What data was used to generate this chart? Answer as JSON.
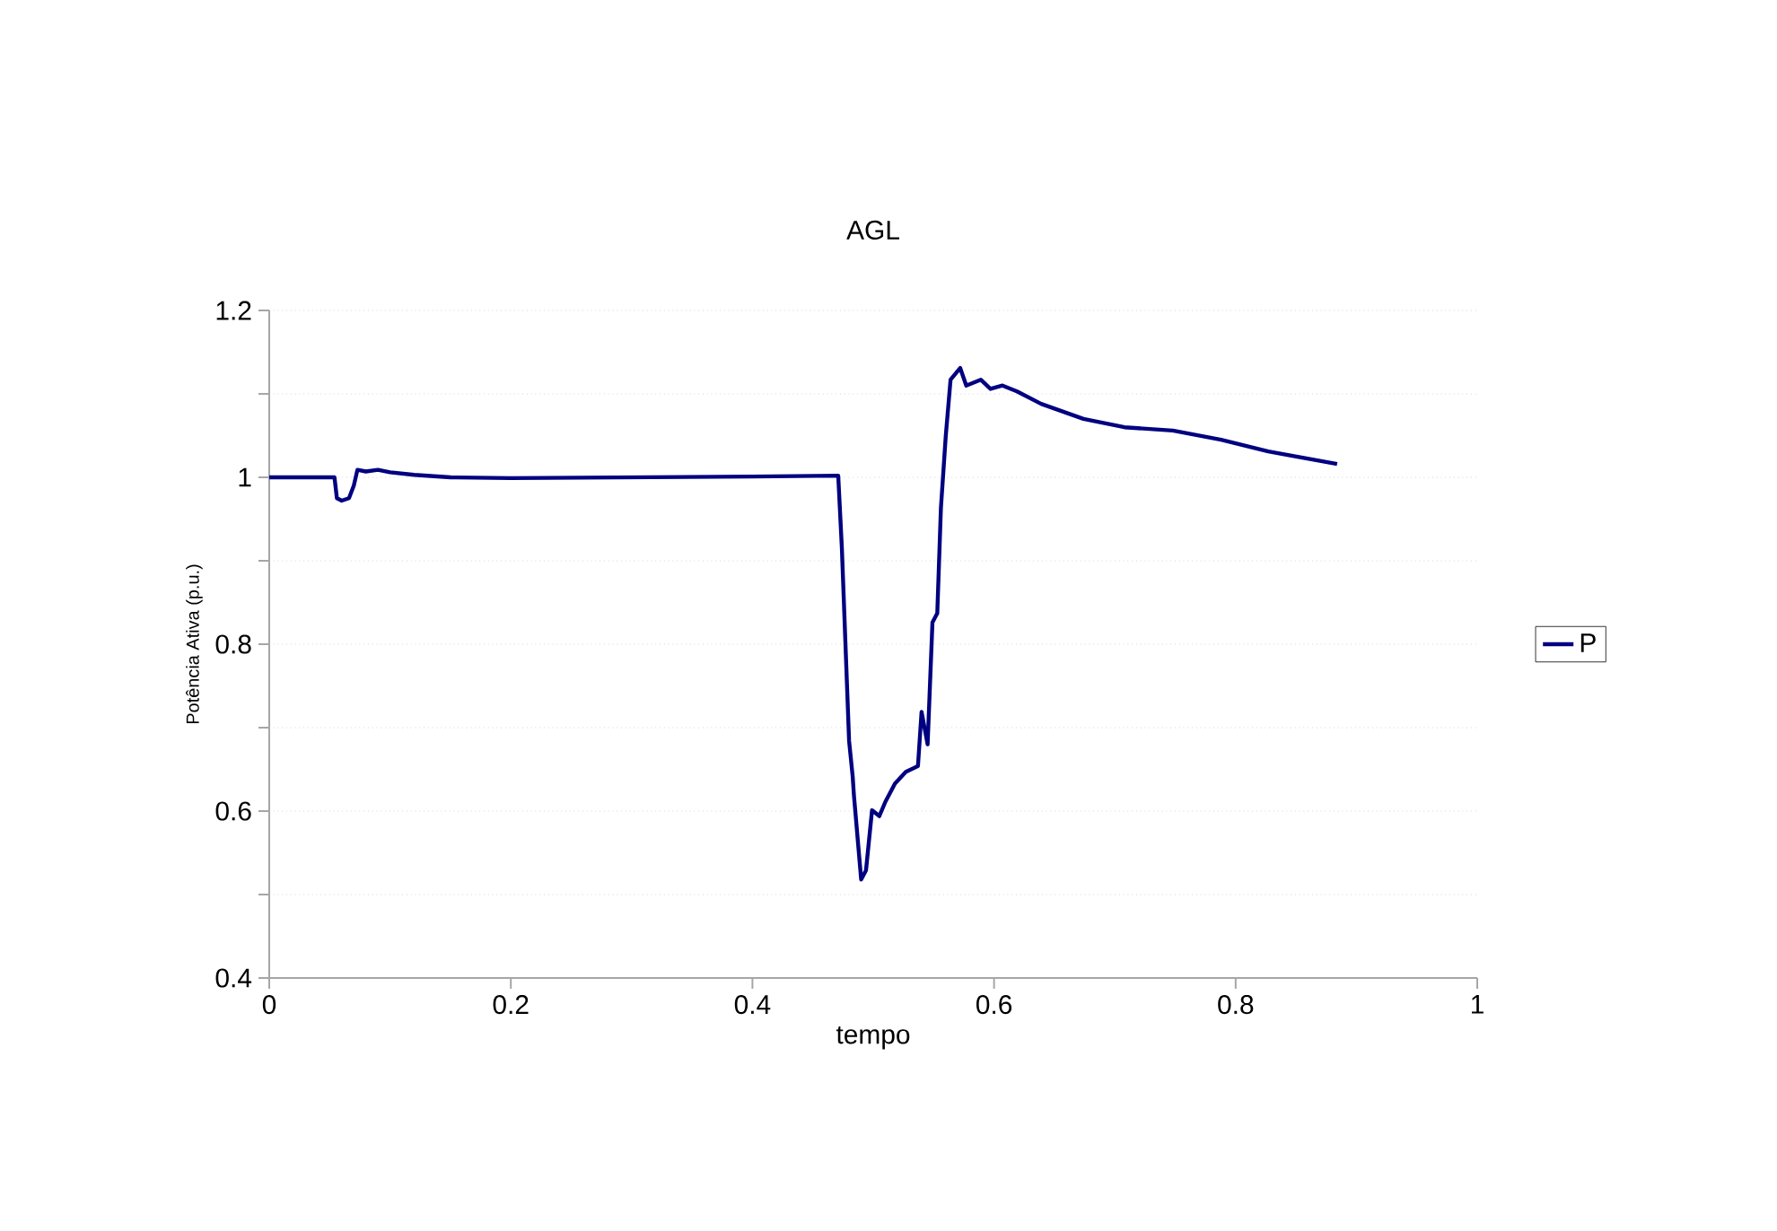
{
  "chart_data": {
    "type": "line",
    "title": "AGL",
    "xlabel": "tempo",
    "ylabel": "Potência Ativa (p.u.)",
    "xlim": [
      0,
      1
    ],
    "ylim": [
      0.4,
      1.2
    ],
    "xticks": [
      0,
      0.2,
      0.4,
      0.6,
      0.8,
      1
    ],
    "yticks": [
      0.4,
      {
        "value": 0.5,
        "label": null
      },
      0.6,
      {
        "value": 0.7,
        "label": null
      },
      0.8,
      {
        "value": 0.9,
        "label": null
      },
      1,
      {
        "value": 1.1,
        "label": null
      },
      1.2
    ],
    "grid": "y",
    "legend": "right",
    "marker": "none",
    "line_style": "solid",
    "series": [
      {
        "name": "P",
        "color": "#000080",
        "x": [
          0,
          0.054,
          0.056,
          0.06,
          0.066,
          0.07,
          0.073,
          0.08,
          0.09,
          0.1,
          0.12,
          0.15,
          0.2,
          0.3,
          0.4,
          0.471,
          0.474,
          0.48,
          0.483,
          0.484,
          0.49,
          0.494,
          0.499,
          0.505,
          0.51,
          0.518,
          0.527,
          0.537,
          0.54,
          0.545,
          0.549,
          0.553,
          0.556,
          0.56,
          0.564,
          0.572,
          0.577,
          0.589,
          0.597,
          0.607,
          0.619,
          0.639,
          0.674,
          0.708,
          0.748,
          0.788,
          0.827,
          0.884
        ],
        "values": [
          1,
          1,
          0.975,
          0.972,
          0.975,
          0.99,
          1.009,
          1.007,
          1.009,
          1.006,
          1.003,
          1,
          0.999,
          1,
          1.001,
          1.002,
          0.916,
          0.684,
          0.641,
          0.619,
          0.518,
          0.529,
          0.601,
          0.594,
          0.611,
          0.633,
          0.647,
          0.654,
          0.719,
          0.68,
          0.826,
          0.837,
          0.963,
          1.049,
          1.117,
          1.131,
          1.11,
          1.117,
          1.106,
          1.11,
          1.103,
          1.088,
          1.07,
          1.06,
          1.056,
          1.045,
          1.031,
          1.016
        ]
      }
    ]
  }
}
